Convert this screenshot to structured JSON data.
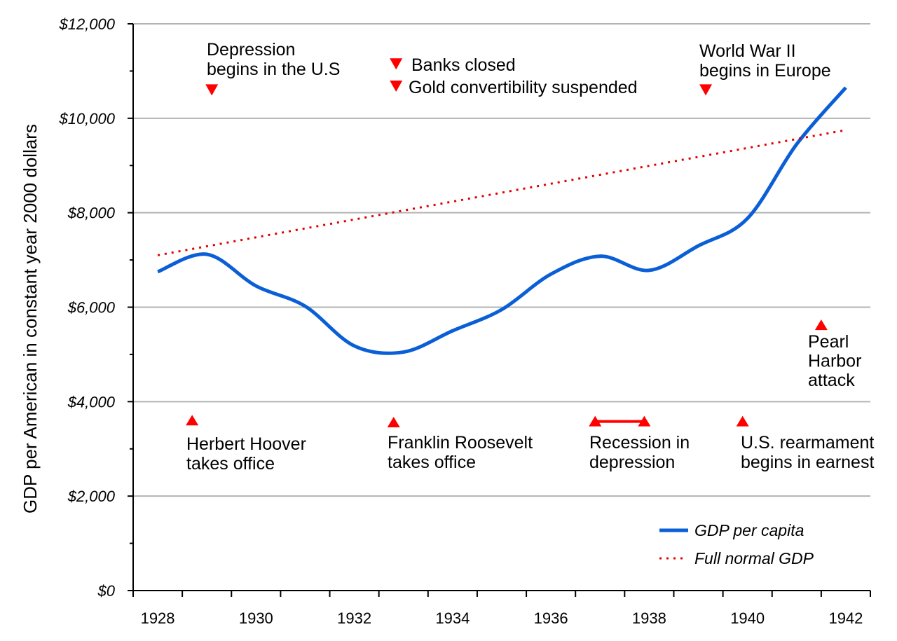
{
  "chart_data": {
    "type": "line",
    "title": "",
    "xlabel": "",
    "ylabel": "GDP per American in constant year 2000 dollars",
    "xlim": [
      1928,
      1943
    ],
    "ylim": [
      0,
      12000
    ],
    "x_ticks": [
      "1928",
      "1930",
      "1932",
      "1934",
      "1936",
      "1938",
      "1940",
      "1942"
    ],
    "y_ticks": [
      "$0",
      "$2,000",
      "$4,000",
      "$6,000",
      "$8,000",
      "$10,000",
      "$12,000"
    ],
    "grid": "horizontal",
    "legend_position": "bottom-right",
    "series": [
      {
        "name": "GDP per capita",
        "style": "solid",
        "color": "#0a5fd6",
        "x": [
          1928.5,
          1929.5,
          1930.5,
          1931.5,
          1932.5,
          1933.5,
          1934.5,
          1935.5,
          1936.5,
          1937.5,
          1938.5,
          1939.5,
          1940.5,
          1941.5,
          1942.5
        ],
        "y": [
          6750,
          7120,
          6450,
          6020,
          5180,
          5050,
          5500,
          5950,
          6700,
          7080,
          6780,
          7300,
          7880,
          9450,
          10650
        ]
      },
      {
        "name": "Full normal GDP",
        "style": "dotted",
        "color": "#e00000",
        "x": [
          1928.5,
          1942.5
        ],
        "y": [
          7100,
          9750
        ]
      }
    ],
    "annotations": [
      {
        "lines": [
          "Depression",
          "begins in the U.S"
        ],
        "marker": "down",
        "marker_x": 1929.6,
        "marker_y": 10600
      },
      {
        "lines": [
          "Banks closed"
        ],
        "marker": "down",
        "marker_x": 1933.35,
        "marker_y": 11150
      },
      {
        "lines": [
          "Gold convertibility suspended"
        ],
        "marker": "down",
        "marker_x": 1933.35,
        "marker_y": 10680
      },
      {
        "lines": [
          "World War II",
          "begins in Europe"
        ],
        "marker": "down",
        "marker_x": 1939.65,
        "marker_y": 10600
      },
      {
        "lines": [
          "Pearl",
          "Harbor",
          "attack"
        ],
        "marker": "up",
        "marker_x": 1942.0,
        "marker_y": 5620
      },
      {
        "lines": [
          "Herbert Hoover",
          "takes office"
        ],
        "marker": "up",
        "marker_x": 1929.2,
        "marker_y": 3600
      },
      {
        "lines": [
          "Franklin Roosevelt",
          "takes office"
        ],
        "marker": "up",
        "marker_x": 1933.3,
        "marker_y": 3560
      },
      {
        "lines": [
          "Recession in",
          "depression"
        ],
        "marker": "range",
        "marker_x": 1937.4,
        "marker_x2": 1938.4,
        "marker_y": 3580
      },
      {
        "lines": [
          "U.S. rearmament",
          "begins in earnest"
        ],
        "marker": "up",
        "marker_x": 1940.4,
        "marker_y": 3580
      }
    ]
  }
}
